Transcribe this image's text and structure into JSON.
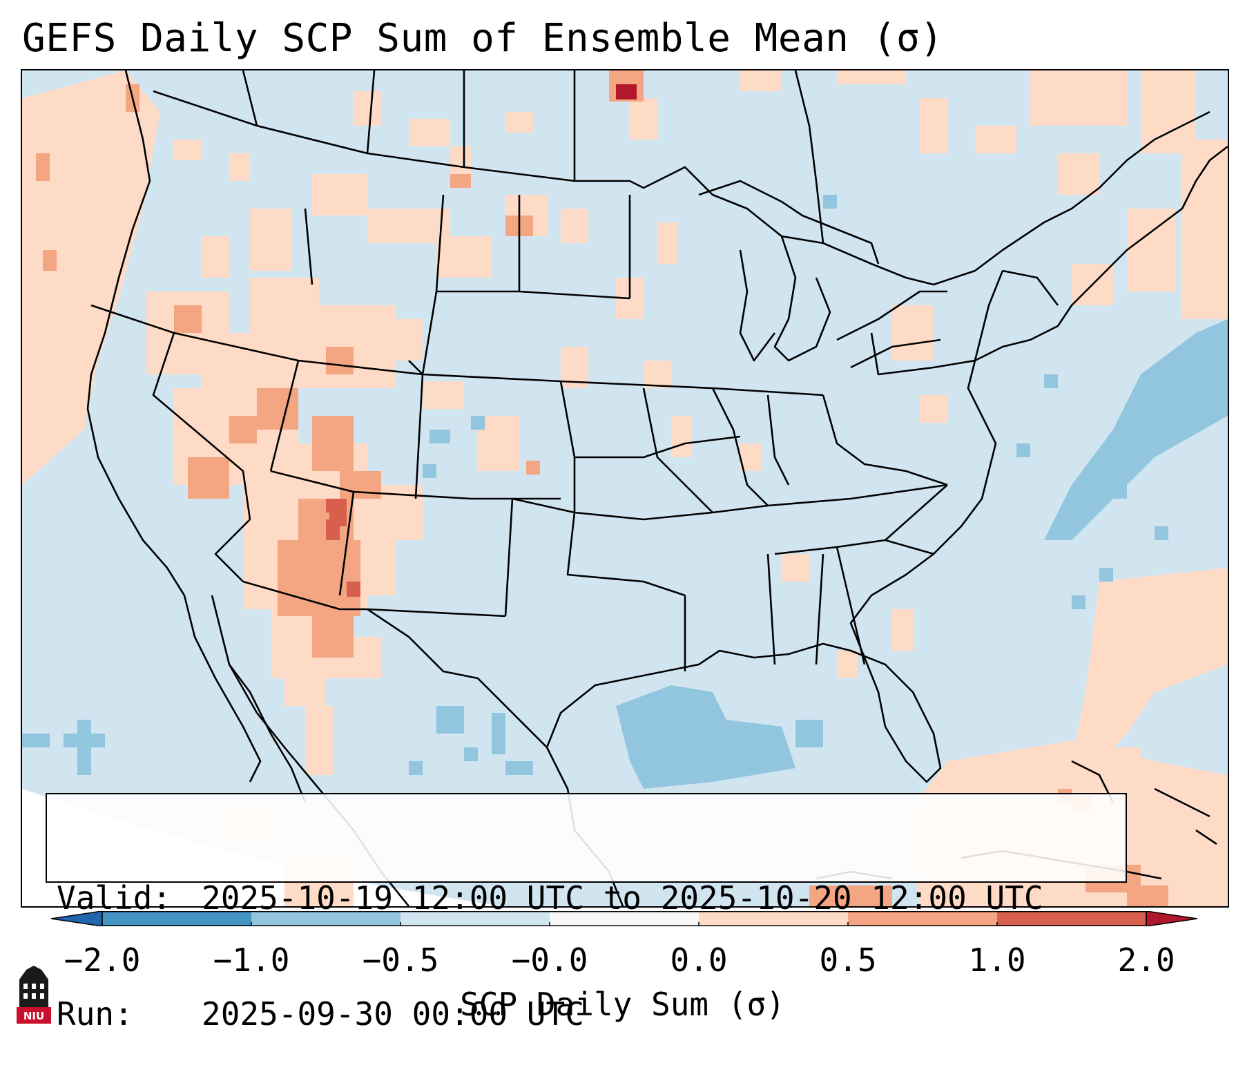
{
  "title": "GEFS Daily SCP Sum of Ensemble Mean (σ)",
  "info": {
    "valid_label": "Valid:",
    "valid_value": "2025-10-19 12:00 UTC to 2025-10-20 12:00 UTC",
    "run_label": "Run:",
    "run_value": "2025-09-30 00:00 UTC"
  },
  "colorbar": {
    "label": "SCP Daily Sum (σ)",
    "ticks": [
      "−2.0",
      "−1.0",
      "−0.5",
      "−0.0",
      "0.0",
      "0.5",
      "1.0",
      "2.0"
    ],
    "colors": [
      "#4393c3",
      "#92c5de",
      "#d1e5f0",
      "#f7f7f7",
      "#fddbc7",
      "#f4a582",
      "#d6604d"
    ],
    "extend_low_color": "#2166ac",
    "extend_high_color": "#b2182b"
  },
  "map_colors": {
    "ocean_base": "#d1e5f0",
    "light_positive": "#fddbc7",
    "mid_positive": "#f4a582",
    "strong_positive": "#d6604d",
    "max_positive": "#b2182b",
    "mid_negative": "#92c5de",
    "outside_domain": "#ffffff"
  },
  "logo": {
    "text": "NIU",
    "name": "niu-logo"
  }
}
